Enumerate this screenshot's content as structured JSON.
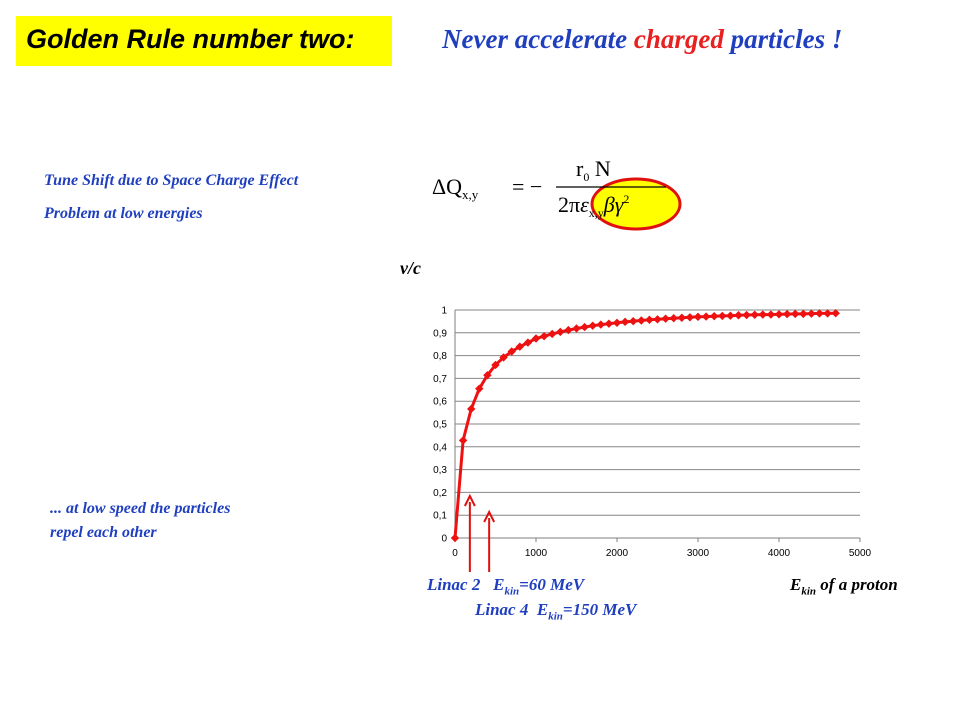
{
  "header": {
    "title": "Golden Rule number two:",
    "subtitle_pre": "Never accelerate ",
    "subtitle_red": "charged",
    "subtitle_post": " particles !"
  },
  "notes": {
    "tune_shift": "Tune Shift due to Space Charge Effect",
    "problem": "Problem at low energies",
    "low_speed_line1": "... at low speed the particles",
    "low_speed_line2": "repel each other"
  },
  "formula": {
    "lhs_delta": "ΔQ",
    "lhs_sub": "x,y",
    "equals": "= −",
    "numerator": "r",
    "numerator_sub": "0",
    "numerator_n": " N",
    "den_2pi": "2π",
    "den_eps": "ε",
    "den_eps_sub": "x,y",
    "den_beta": "β",
    "den_gamma": "γ",
    "den_gamma_sup": "2"
  },
  "labels": {
    "y_axis": "v/c",
    "x_axis_main": "E",
    "x_axis_sub": "kin",
    "x_axis_rest": " of a proton",
    "linac2_name": "Linac 2",
    "linac2_e": "E",
    "linac2_sub": "kin",
    "linac2_val": "=60 MeV",
    "linac4_name": "Linac 4",
    "linac4_e": "E",
    "linac4_sub": "kin",
    "linac4_val": "=150 MeV"
  },
  "colors": {
    "series": "#ee1111",
    "highlight_yellow": "#ffff00",
    "blue_text": "#1f3fbf",
    "arrow": "#e01010"
  },
  "chart_data": {
    "type": "line",
    "x": [
      0,
      100,
      200,
      300,
      400,
      500,
      600,
      700,
      800,
      900,
      1000,
      1100,
      1200,
      1300,
      1400,
      1500,
      1600,
      1700,
      1800,
      1900,
      2000,
      2100,
      2200,
      2300,
      2400,
      2500,
      2600,
      2700,
      2800,
      2900,
      3000,
      3100,
      3200,
      3300,
      3400,
      3500,
      3600,
      3700,
      3800,
      3900,
      4000,
      4100,
      4200,
      4300,
      4400,
      4500,
      4600,
      4700
    ],
    "series": [
      {
        "values": [
          0,
          0.428,
          0.566,
          0.655,
          0.714,
          0.759,
          0.792,
          0.818,
          0.839,
          0.857,
          0.875,
          0.885,
          0.895,
          0.904,
          0.912,
          0.919,
          0.925,
          0.931,
          0.936,
          0.94,
          0.944,
          0.948,
          0.951,
          0.954,
          0.957,
          0.959,
          0.962,
          0.964,
          0.966,
          0.968,
          0.97,
          0.971,
          0.973,
          0.974,
          0.975,
          0.977,
          0.978,
          0.979,
          0.98,
          0.98,
          0.981,
          0.982,
          0.983,
          0.983,
          0.984,
          0.985,
          0.985,
          0.986
        ]
      }
    ],
    "x_ticks": [
      "0",
      "1000",
      "2000",
      "3000",
      "4000",
      "5000"
    ],
    "y_ticks": [
      "0",
      "0,1",
      "0,2",
      "0,3",
      "0,4",
      "0,5",
      "0,6",
      "0,7",
      "0,8",
      "0,9",
      "1"
    ],
    "xlim": [
      0,
      5000
    ],
    "ylim": [
      0,
      1
    ],
    "grid": "horizontal",
    "arrows_at_x": [
      60,
      150
    ]
  }
}
